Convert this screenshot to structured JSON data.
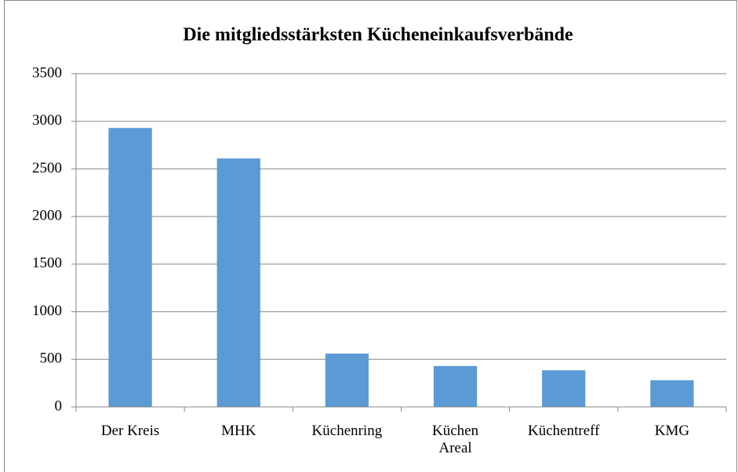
{
  "chart_data": {
    "type": "bar",
    "title": "Die mitgliedsstärksten Kücheneinkaufsverbände",
    "categories": [
      "Der Kreis",
      "MHK",
      "Küchenring",
      "Küchen Areal",
      "Küchentreff",
      "KMG"
    ],
    "values": [
      2930,
      2610,
      560,
      430,
      385,
      280
    ],
    "color": "#5b9bd5",
    "ylim": [
      0,
      3500
    ],
    "yticks": [
      0,
      500,
      1000,
      1500,
      2000,
      2500,
      3000,
      3500
    ],
    "grid": true
  }
}
